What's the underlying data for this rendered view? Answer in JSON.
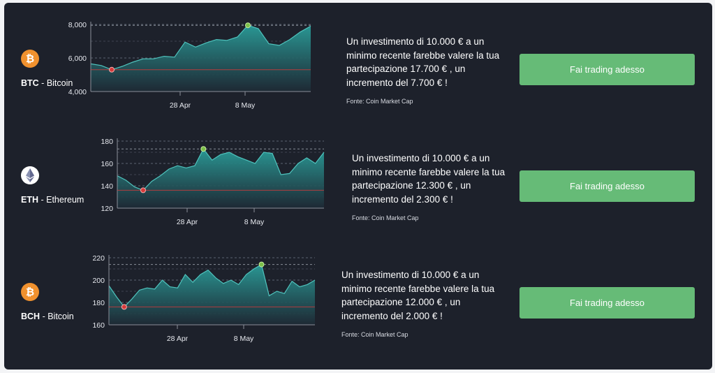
{
  "cta_label": "Fai trading adesso",
  "source_label": "Fonte: Coin Market Cap",
  "colors": {
    "accent": "#66bb77",
    "panel": "#1d212b",
    "area": "#2a9d99",
    "min_marker": "#d63a3a",
    "max_marker": "#7cc04a"
  },
  "rows": [
    {
      "symbol": "BTC",
      "name": "Bitcoin",
      "icon": "bitcoin-icon",
      "desc": "Un investimento di 10.000 € a un minimo recente farebbe valere la tua partecipazione 17.700 € , un incremento del 7.700 € !",
      "chart_data": {
        "type": "area",
        "x_ticks": [
          "28 Apr",
          "8 May"
        ],
        "y_ticks": [
          "8,000",
          "6,000",
          "4,000"
        ],
        "ylim": [
          4000,
          8000
        ],
        "grid": "dashed horizontal",
        "values": [
          5650,
          5550,
          5300,
          5500,
          5750,
          5950,
          5950,
          6100,
          6050,
          6950,
          6650,
          6900,
          7100,
          7050,
          7250,
          7950,
          7750,
          6850,
          6750,
          7100,
          7550,
          7900
        ]
      }
    },
    {
      "symbol": "ETH",
      "name": "Ethereum",
      "icon": "ethereum-icon",
      "desc": "Un investimento di 10.000 € a un minimo recente farebbe valere la tua partecipazione 12.300 € , un incremento del 2.300 € !",
      "chart_data": {
        "type": "area",
        "x_ticks": [
          "28 Apr",
          "8 May"
        ],
        "y_ticks": [
          "180",
          "160",
          "140",
          "120"
        ],
        "ylim": [
          120,
          180
        ],
        "grid": "dashed horizontal",
        "values": [
          149,
          145,
          139,
          136,
          144,
          149,
          155,
          158,
          156,
          158,
          173,
          163,
          168,
          170,
          166,
          163,
          160,
          170,
          169,
          150,
          151,
          160,
          165,
          160,
          170
        ]
      }
    },
    {
      "symbol": "BCH",
      "name": "Bitcoin",
      "icon": "bitcoin-icon",
      "desc": "Un investimento di 10.000 € a un minimo recente farebbe valere la tua partecipazione 12.000 € , un incremento del 2.000 € !",
      "chart_data": {
        "type": "area",
        "x_ticks": [
          "28 Apr",
          "8 May"
        ],
        "y_ticks": [
          "220",
          "200",
          "180",
          "160"
        ],
        "ylim": [
          160,
          220
        ],
        "grid": "dashed horizontal",
        "values": [
          195,
          185,
          176,
          183,
          191,
          193,
          192,
          200,
          194,
          193,
          205,
          198,
          205,
          209,
          202,
          197,
          200,
          196,
          205,
          210,
          214,
          186,
          190,
          188,
          199,
          194,
          196,
          200
        ]
      }
    }
  ]
}
